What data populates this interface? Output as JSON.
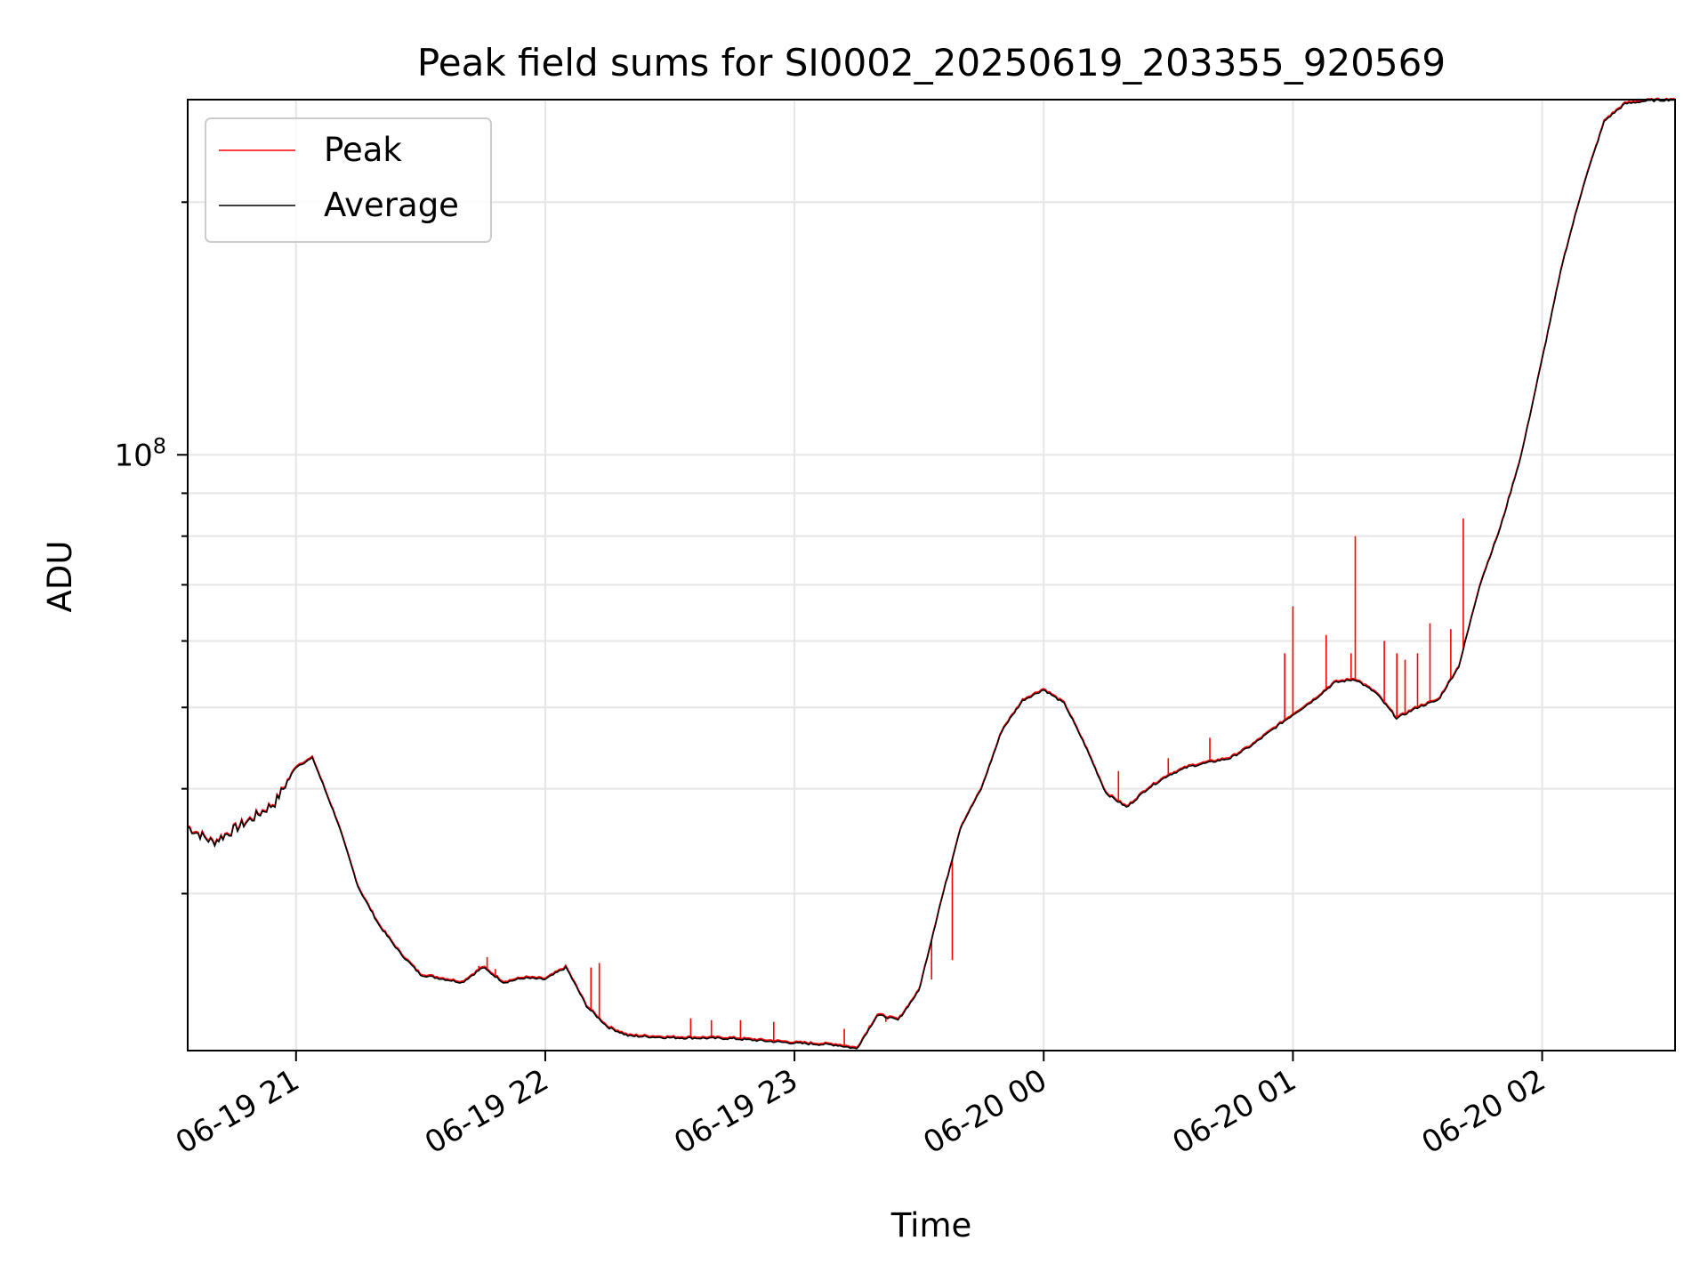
{
  "chart_data": {
    "type": "line",
    "title": "Peak field sums for SI0002_20250619_203355_920569",
    "xlabel": "Time",
    "ylabel": "ADU",
    "y_scale": "log",
    "ylim": [
      19500000,
      265000000
    ],
    "xlim": [
      "2025-06-19 20:33:55",
      "2025-06-20 02:32:00"
    ],
    "grid": true,
    "legend_position": "upper left",
    "x_ticks": [
      {
        "t": "2025-06-19 21:00",
        "label": "06-19 21"
      },
      {
        "t": "2025-06-19 22:00",
        "label": "06-19 22"
      },
      {
        "t": "2025-06-19 23:00",
        "label": "06-19 23"
      },
      {
        "t": "2025-06-20 00:00",
        "label": "06-20 00"
      },
      {
        "t": "2025-06-20 01:00",
        "label": "06-20 01"
      },
      {
        "t": "2025-06-20 02:00",
        "label": "06-20 02"
      }
    ],
    "y_major_ticks": [
      {
        "value": 100000000,
        "base": "10",
        "exp": "8"
      }
    ],
    "y_minor_ticks": [
      30000000,
      40000000,
      50000000,
      60000000,
      70000000,
      80000000,
      90000000,
      200000000
    ],
    "series": [
      {
        "name": "Average",
        "color": "#000000",
        "x": [
          "2025-06-19 20:33:55",
          "2025-06-19 20:40",
          "2025-06-19 20:50",
          "2025-06-19 20:55",
          "2025-06-19 21:00",
          "2025-06-19 21:04",
          "2025-06-19 21:10",
          "2025-06-19 21:15",
          "2025-06-19 21:20",
          "2025-06-19 21:25",
          "2025-06-19 21:30",
          "2025-06-19 21:40",
          "2025-06-19 21:45",
          "2025-06-19 21:50",
          "2025-06-19 21:55",
          "2025-06-19 22:00",
          "2025-06-19 22:05",
          "2025-06-19 22:10",
          "2025-06-19 22:15",
          "2025-06-19 22:20",
          "2025-06-19 22:30",
          "2025-06-19 22:45",
          "2025-06-19 23:00",
          "2025-06-19 23:10",
          "2025-06-19 23:15",
          "2025-06-19 23:20",
          "2025-06-19 23:25",
          "2025-06-19 23:30",
          "2025-06-19 23:35",
          "2025-06-19 23:40",
          "2025-06-19 23:45",
          "2025-06-19 23:50",
          "2025-06-19 23:55",
          "2025-06-20 00:00",
          "2025-06-20 00:05",
          "2025-06-20 00:10",
          "2025-06-20 00:15",
          "2025-06-20 00:20",
          "2025-06-20 00:25",
          "2025-06-20 00:30",
          "2025-06-20 00:35",
          "2025-06-20 00:40",
          "2025-06-20 00:45",
          "2025-06-20 00:50",
          "2025-06-20 00:55",
          "2025-06-20 01:00",
          "2025-06-20 01:05",
          "2025-06-20 01:10",
          "2025-06-20 01:15",
          "2025-06-20 01:20",
          "2025-06-20 01:25",
          "2025-06-20 01:30",
          "2025-06-20 01:35",
          "2025-06-20 01:40",
          "2025-06-20 01:45",
          "2025-06-20 01:50",
          "2025-06-20 01:55",
          "2025-06-20 02:00",
          "2025-06-20 02:05",
          "2025-06-20 02:10",
          "2025-06-20 02:15",
          "2025-06-20 02:20",
          "2025-06-20 02:25",
          "2025-06-20 02:32"
        ],
        "y": [
          36000000,
          34500000,
          37000000,
          38500000,
          42500000,
          43500000,
          36500000,
          30500000,
          27500000,
          25500000,
          24000000,
          23500000,
          24500000,
          23500000,
          23800000,
          23700000,
          24500000,
          22000000,
          20800000,
          20300000,
          20200000,
          20150000,
          19900000,
          19800000,
          19600000,
          21500000,
          21200000,
          23000000,
          29000000,
          36000000,
          40000000,
          47000000,
          51000000,
          52500000,
          50500000,
          45000000,
          39500000,
          38000000,
          40000000,
          41500000,
          42500000,
          43000000,
          43500000,
          45000000,
          47000000,
          49000000,
          51000000,
          53500000,
          54000000,
          52000000,
          48500000,
          50000000,
          51000000,
          56000000,
          70000000,
          82000000,
          100000000,
          130000000,
          170000000,
          210000000,
          250000000,
          262000000,
          264000000,
          265000000
        ]
      },
      {
        "name": "Peak",
        "color": "#ff0000",
        "spikes": [
          {
            "t": "2025-06-19 21:44",
            "y": 24600000
          },
          {
            "t": "2025-06-19 21:46",
            "y": 25200000
          },
          {
            "t": "2025-06-19 21:48",
            "y": 24400000
          },
          {
            "t": "2025-06-19 22:11",
            "y": 24500000
          },
          {
            "t": "2025-06-19 22:13",
            "y": 24800000
          },
          {
            "t": "2025-06-19 22:35",
            "y": 21300000
          },
          {
            "t": "2025-06-19 22:40",
            "y": 21200000
          },
          {
            "t": "2025-06-19 22:47",
            "y": 21200000
          },
          {
            "t": "2025-06-19 22:55",
            "y": 21100000
          },
          {
            "t": "2025-06-19 23:12",
            "y": 20700000
          },
          {
            "t": "2025-06-19 23:18",
            "y": 20900000
          },
          {
            "t": "2025-06-19 23:22",
            "y": 21100000
          },
          {
            "t": "2025-06-19 23:33",
            "y": 23700000
          },
          {
            "t": "2025-06-19 23:38",
            "y": 25000000
          },
          {
            "t": "2025-06-20 00:18",
            "y": 42000000
          },
          {
            "t": "2025-06-20 00:30",
            "y": 43500000
          },
          {
            "t": "2025-06-20 00:40",
            "y": 46000000
          },
          {
            "t": "2025-06-20 00:58",
            "y": 58000000
          },
          {
            "t": "2025-06-20 01:00",
            "y": 66000000
          },
          {
            "t": "2025-06-20 01:08",
            "y": 61000000
          },
          {
            "t": "2025-06-20 01:14",
            "y": 58000000
          },
          {
            "t": "2025-06-20 01:15",
            "y": 80000000
          },
          {
            "t": "2025-06-20 01:22",
            "y": 60000000
          },
          {
            "t": "2025-06-20 01:25",
            "y": 58000000
          },
          {
            "t": "2025-06-20 01:27",
            "y": 57000000
          },
          {
            "t": "2025-06-20 01:30",
            "y": 58000000
          },
          {
            "t": "2025-06-20 01:33",
            "y": 63000000
          },
          {
            "t": "2025-06-20 01:38",
            "y": 62000000
          },
          {
            "t": "2025-06-20 01:41",
            "y": 84000000
          }
        ]
      }
    ]
  }
}
